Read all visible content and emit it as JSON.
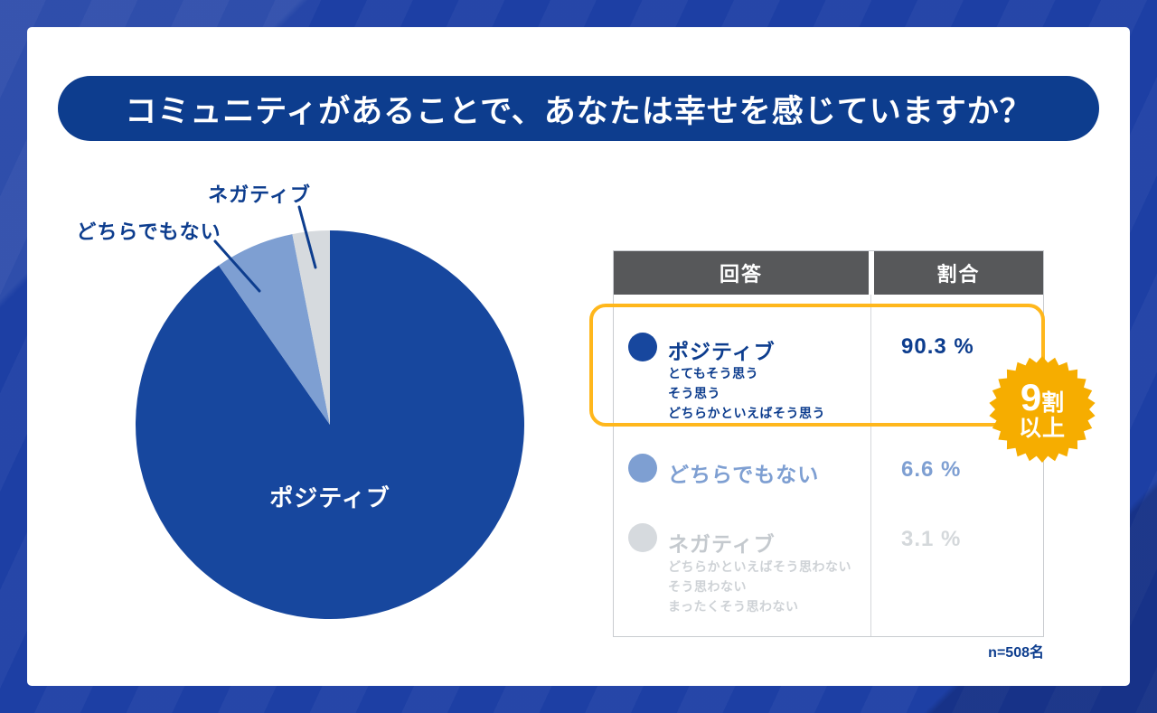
{
  "page": {
    "title": "コミュニティがあることで、あなたは幸せを感じていますか？",
    "sample_note": "n=508名"
  },
  "colors": {
    "background_blue": "#1d3fa4",
    "title_navy": "#0d3d8e",
    "positive": "#17479e",
    "neutral": "#7e9fd2",
    "negative": "#d6dade",
    "header_gray": "#57585a",
    "badge_yellow": "#f6ad00",
    "highlight_border": "#ffb71c"
  },
  "badge": {
    "big": "9",
    "suffix": "割",
    "line2": "以上"
  },
  "table": {
    "headers": [
      "回答",
      "割合"
    ],
    "rows": [
      {
        "label": "ポジティブ",
        "sub": [
          "とてもそう思う",
          "そう思う",
          "どちらかといえばそう思う"
        ],
        "value": "90.3 %",
        "highlighted": true
      },
      {
        "label": "どちらでもない",
        "sub": [],
        "value": "6.6 %",
        "highlighted": false
      },
      {
        "label": "ネガティブ",
        "sub": [
          "どちらかといえばそう思わない",
          "そう思わない",
          "まったくそう思わない"
        ],
        "value": "3.1 %",
        "highlighted": false
      }
    ]
  },
  "chart_data": {
    "type": "pie",
    "title": "コミュニティがあることで、あなたは幸せを感じていますか？",
    "categories": [
      "ポジティブ",
      "どちらでもない",
      "ネガティブ"
    ],
    "values": [
      90.3,
      6.6,
      3.1
    ],
    "colors": [
      "#17479e",
      "#7e9fd2",
      "#d6dade"
    ],
    "start_angle_deg": -90,
    "direction": "clockwise",
    "legend_position": "table-right",
    "sample_size": "n=508名"
  }
}
